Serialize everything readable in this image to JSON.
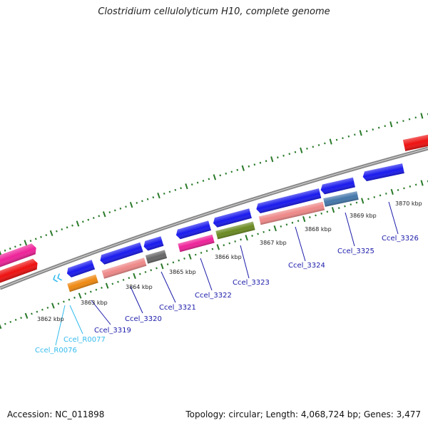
{
  "title": "Clostridium cellulolyticum H10, complete genome",
  "footer": {
    "accession": "Accession: NC_011898",
    "topology": "Topology: circular; Length: 4,068,724 bp; Genes: 3,477"
  },
  "kbp_labels": [
    "3862 kbp",
    "3863 kbp",
    "3864 kbp",
    "3865 kbp",
    "3866 kbp",
    "3867 kbp",
    "3868 kbp",
    "3869 kbp",
    "3870 kbp"
  ],
  "gene_labels": [
    {
      "text": "Ccel_R0076",
      "color": "#33bbee"
    },
    {
      "text": "Ccel_R0077",
      "color": "#33bbee"
    },
    {
      "text": "Ccel_3319",
      "color": "#1a1aaa"
    },
    {
      "text": "Ccel_3320",
      "color": "#1a1aaa"
    },
    {
      "text": "Ccel_3321",
      "color": "#1a1aaa"
    },
    {
      "text": "Ccel_3322",
      "color": "#1a1aaa"
    },
    {
      "text": "Ccel_3323",
      "color": "#1a1aaa"
    },
    {
      "text": "Ccel_3324",
      "color": "#1a1aaa"
    },
    {
      "text": "Ccel_3325",
      "color": "#1a1aaa"
    },
    {
      "text": "Ccel_3326",
      "color": "#1a1aaa"
    }
  ],
  "colors": {
    "backbone": "#888888",
    "ticks": "#2a7a2a",
    "gene_blue": "#1a1aee",
    "gene_red": "#ee1111",
    "gene_magenta": "#ee2299",
    "gene_salmon": "#ee8888",
    "gene_orange": "#ee8811",
    "gene_gray": "#666666",
    "gene_olive": "#6a8a22",
    "gene_steelblue": "#4477aa"
  }
}
